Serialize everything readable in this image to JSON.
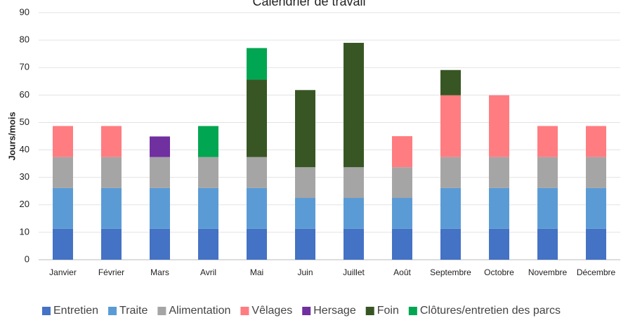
{
  "chart_data": {
    "type": "stacked_bar",
    "title": "Calendrier de travail",
    "y_label": "Jours/mois",
    "categories": [
      "Janvier",
      "Février",
      "Mars",
      "Avril",
      "Mai",
      "Juin",
      "Juillet",
      "Août",
      "Septembre",
      "Octobre",
      "Novembre",
      "Décembre"
    ],
    "series": [
      {
        "name": "Entretien",
        "color": "#4472c4",
        "values": [
          11.3,
          11.3,
          11.3,
          11.3,
          11.3,
          11.3,
          11.3,
          11.3,
          11.3,
          11.3,
          11.3,
          11.3
        ]
      },
      {
        "name": "Traite",
        "color": "#5b9bd5",
        "values": [
          14.8,
          14.8,
          14.8,
          14.8,
          14.8,
          11.2,
          11.2,
          11.2,
          14.8,
          14.8,
          14.8,
          14.8
        ]
      },
      {
        "name": "Alimentation",
        "color": "#a5a5a5",
        "values": [
          11.3,
          11.3,
          11.3,
          11.3,
          11.3,
          11.2,
          11.2,
          11.2,
          11.3,
          11.3,
          11.3,
          11.3
        ]
      },
      {
        "name": "Vêlages",
        "color": "#ff7c80",
        "values": [
          11.3,
          11.3,
          null,
          null,
          null,
          null,
          null,
          11.3,
          22.5,
          22.5,
          11.3,
          11.3
        ]
      },
      {
        "name": "Hersage",
        "color": "#7030a0",
        "values": [
          null,
          null,
          7.5,
          null,
          null,
          null,
          null,
          null,
          null,
          null,
          null,
          null
        ]
      },
      {
        "name": "Foin",
        "color": "#375623",
        "values": [
          null,
          null,
          null,
          null,
          28.2,
          28.1,
          45.3,
          null,
          9.2,
          null,
          null,
          null
        ]
      },
      {
        "name": "Clôtures/entretien des parcs",
        "color": "#00a651",
        "values": [
          null,
          null,
          null,
          11.3,
          11.5,
          null,
          null,
          null,
          null,
          null,
          null,
          null
        ]
      }
    ],
    "ylim": [
      0,
      90
    ],
    "yticks": [
      0,
      10,
      20,
      30,
      40,
      50,
      60,
      70,
      80,
      90
    ],
    "grid": true,
    "legend": "bottom"
  }
}
